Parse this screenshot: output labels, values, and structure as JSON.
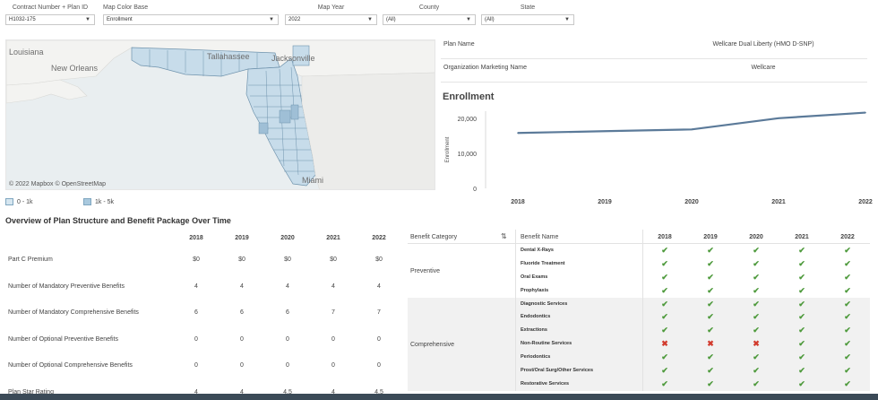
{
  "filters": [
    {
      "label": "Contract Number + Plan ID",
      "value": "H1032-175"
    },
    {
      "label": "Map Color Base",
      "value": "Enrollment"
    },
    {
      "label": "Map Year",
      "value": "2022"
    },
    {
      "label": "County",
      "value": "(All)"
    },
    {
      "label": "State",
      "value": "(All)"
    }
  ],
  "map": {
    "place_labels": [
      "Louisiana",
      "New Orleans",
      "Tallahassee",
      "Jacksonville",
      "Miami"
    ],
    "credit": "© 2022 Mapbox © OpenStreetMap",
    "legend": [
      {
        "label": "0 - 1k",
        "color": "#d6e6f0"
      },
      {
        "label": "1k - 5k",
        "color": "#a9c9de"
      }
    ]
  },
  "plan_info": {
    "plan_name_key": "Plan Name",
    "plan_name_value": "Wellcare Dual Liberty (HMO D-SNP)",
    "org_key": "Organization Marketing Name",
    "org_value": "Wellcare"
  },
  "enrollment": {
    "title": "Enrollment"
  },
  "chart_data": {
    "type": "line",
    "title": "Enrollment",
    "xlabel": "",
    "ylabel": "Enrollment",
    "x": [
      "2018",
      "2019",
      "2020",
      "2021",
      "2022"
    ],
    "series": [
      {
        "values": [
          15800,
          16300,
          16800,
          20000,
          21600
        ]
      }
    ],
    "ylim": [
      0,
      22000
    ],
    "yticks": [
      0,
      10000,
      20000
    ],
    "ytick_labels": [
      "0",
      "10,000",
      "20,000"
    ],
    "line_color": "#5b7a99",
    "grid": false
  },
  "overview": {
    "title": "Overview of Plan Structure and Benefit Package Over Time",
    "years": [
      "2018",
      "2019",
      "2020",
      "2021",
      "2022"
    ],
    "rows": [
      {
        "name": "Part C Premium",
        "values": [
          "$0",
          "$0",
          "$0",
          "$0",
          "$0"
        ]
      },
      {
        "name": "Number of Mandatory Preventive Benefits",
        "values": [
          "4",
          "4",
          "4",
          "4",
          "4"
        ]
      },
      {
        "name": "Number of Mandatory Comprehensive Benefits",
        "values": [
          "6",
          "6",
          "6",
          "7",
          "7"
        ]
      },
      {
        "name": "Number of Optional Preventive Benefits",
        "values": [
          "0",
          "0",
          "0",
          "0",
          "0"
        ]
      },
      {
        "name": "Number of Optional Comprehensive Benefits",
        "values": [
          "0",
          "0",
          "0",
          "0",
          "0"
        ]
      },
      {
        "name": "Plan Star Rating",
        "values": [
          "4",
          "4",
          "4.5",
          "4",
          "4.5"
        ]
      }
    ]
  },
  "benefits": {
    "category_header": "Benefit Category",
    "name_header": "Benefit Name",
    "years": [
      "2018",
      "2019",
      "2020",
      "2021",
      "2022"
    ],
    "categories": [
      {
        "name": "Preventive",
        "items": [
          {
            "name": "Dental X-Rays",
            "marks": [
              "✔",
              "✔",
              "✔",
              "✔",
              "✔"
            ]
          },
          {
            "name": "Fluoride Treatment",
            "marks": [
              "✔",
              "✔",
              "✔",
              "✔",
              "✔"
            ]
          },
          {
            "name": "Oral Exams",
            "marks": [
              "✔",
              "✔",
              "✔",
              "✔",
              "✔"
            ]
          },
          {
            "name": "Prophylaxis",
            "marks": [
              "✔",
              "✔",
              "✔",
              "✔",
              "✔"
            ]
          }
        ]
      },
      {
        "name": "Comprehensive",
        "items": [
          {
            "name": "Diagnostic Services",
            "marks": [
              "✔",
              "✔",
              "✔",
              "✔",
              "✔"
            ]
          },
          {
            "name": "Endodontics",
            "marks": [
              "✔",
              "✔",
              "✔",
              "✔",
              "✔"
            ]
          },
          {
            "name": "Extractions",
            "marks": [
              "✔",
              "✔",
              "✔",
              "✔",
              "✔"
            ]
          },
          {
            "name": "Non-Routine Services",
            "marks": [
              "✖",
              "✖",
              "✖",
              "✔",
              "✔"
            ]
          },
          {
            "name": "Periodontics",
            "marks": [
              "✔",
              "✔",
              "✔",
              "✔",
              "✔"
            ]
          },
          {
            "name": "Prost/Oral Surg/Other Services",
            "marks": [
              "✔",
              "✔",
              "✔",
              "✔",
              "✔"
            ]
          },
          {
            "name": "Restorative Services",
            "marks": [
              "✔",
              "✔",
              "✔",
              "✔",
              "✔"
            ]
          }
        ]
      }
    ]
  }
}
